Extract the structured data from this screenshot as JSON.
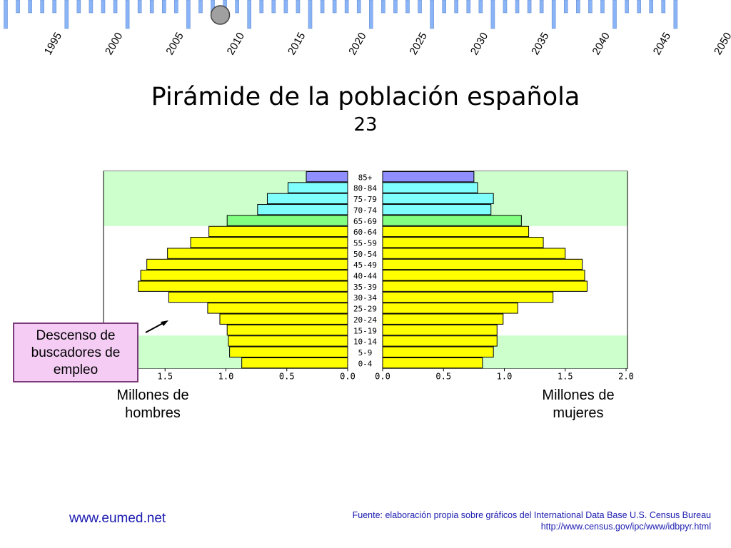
{
  "timeline": {
    "years": [
      "1995",
      "2000",
      "2005",
      "2010",
      "2015",
      "2020",
      "2025",
      "2030",
      "2035",
      "2040",
      "2045",
      "2050"
    ],
    "active_index": 3.5,
    "bar_color": "#8ab4f8",
    "marker_color": "#a0a0a0"
  },
  "title": "Pirámide de la población española",
  "slide_number": "23",
  "chart_data": {
    "type": "bar",
    "orientation": "horizontal-pyramid",
    "categories": [
      "85+",
      "80-84",
      "75-79",
      "70-74",
      "65-69",
      "60-64",
      "55-59",
      "50-54",
      "45-49",
      "40-44",
      "35-39",
      "30-34",
      "25-29",
      "20-24",
      "15-19",
      "10-14",
      "5-9",
      "0-4"
    ],
    "series": [
      {
        "name": "Millones de hombres",
        "values": [
          0.34,
          0.49,
          0.66,
          0.74,
          0.99,
          1.14,
          1.29,
          1.48,
          1.65,
          1.7,
          1.72,
          1.47,
          1.15,
          1.05,
          0.99,
          0.98,
          0.97,
          0.87
        ]
      },
      {
        "name": "Millones de mujeres",
        "values": [
          0.75,
          0.78,
          0.91,
          0.89,
          1.14,
          1.2,
          1.32,
          1.5,
          1.64,
          1.66,
          1.68,
          1.4,
          1.11,
          0.99,
          0.94,
          0.94,
          0.91,
          0.82
        ]
      }
    ],
    "bar_colors": [
      "#8f8fff",
      "#80ffff",
      "#80ffff",
      "#80ffff",
      "#80ff80",
      "#ffff00",
      "#ffff00",
      "#ffff00",
      "#ffff00",
      "#ffff00",
      "#ffff00",
      "#ffff00",
      "#ffff00",
      "#ffff00",
      "#ffff00",
      "#ffff00",
      "#ffff00",
      "#ffff00"
    ],
    "band_color": "#ccffcc",
    "bands": [
      {
        "from": "85+",
        "to": "65-69"
      },
      {
        "from": "10-14",
        "to": "0-4"
      }
    ],
    "left_ticks": [
      1.5,
      1.0,
      0.5,
      0.0
    ],
    "right_ticks": [
      0.0,
      0.5,
      1.0,
      1.5,
      2.0
    ],
    "left_ticks_text": [
      "1.5",
      "1.0",
      "0.5",
      "0.0"
    ],
    "right_ticks_text": [
      "0.0",
      "0.5",
      "1.0",
      "1.5",
      "2.0"
    ],
    "xlim_left": [
      0,
      2.0
    ],
    "xlim_right": [
      0,
      2.0
    ],
    "xlabel_left": "Millones de hombres",
    "xlabel_right": "Millones de mujeres"
  },
  "men_caption_line1": "Millones de",
  "men_caption_line2": "hombres",
  "women_caption_line1": "Millones de",
  "women_caption_line2": "mujeres",
  "callout": {
    "line1": "Descenso de",
    "line2": "buscadores de",
    "line3": "empleo"
  },
  "footer": {
    "site": "www.eumed.net",
    "source_line1": "Fuente: elaboración propia sobre gráficos del International Data Base U.S. Census Bureau",
    "source_line2": "http://www.census.gov/ipc/www/idbpyr.html"
  }
}
